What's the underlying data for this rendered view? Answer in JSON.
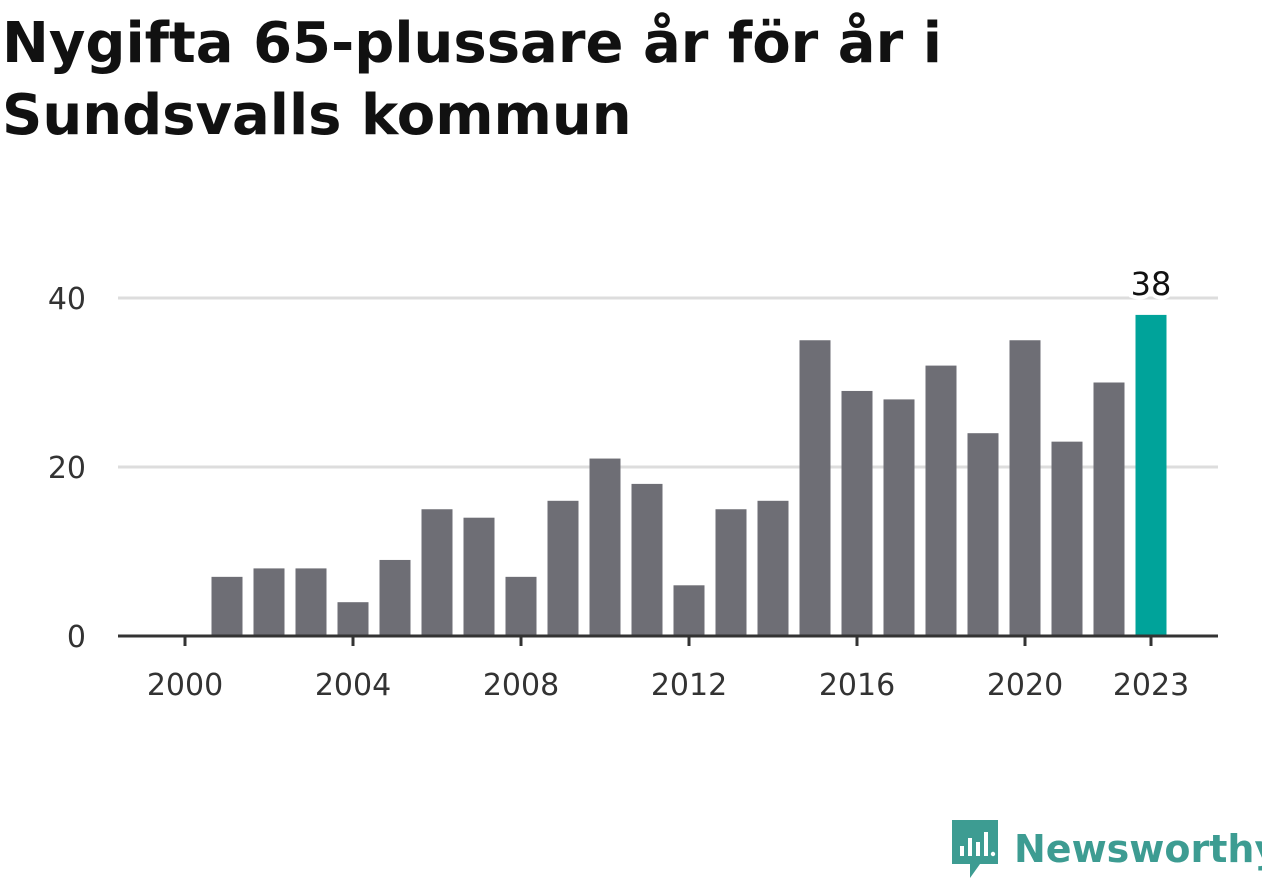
{
  "title": "Nygifta 65-plussare år för år i Sundsvalls kommun",
  "brand": {
    "name": "Newsworthy",
    "icon": "newsworthy-logo-icon",
    "color": "#3d9c92"
  },
  "chart_data": {
    "type": "bar",
    "title": "Nygifta 65-plussare år för år i Sundsvalls kommun",
    "categories": [
      "2000",
      "2001",
      "2002",
      "2003",
      "2004",
      "2005",
      "2006",
      "2007",
      "2008",
      "2009",
      "2010",
      "2011",
      "2012",
      "2013",
      "2014",
      "2015",
      "2016",
      "2017",
      "2018",
      "2019",
      "2020",
      "2021",
      "2022",
      "2023"
    ],
    "values": [
      0,
      7,
      8,
      8,
      4,
      9,
      15,
      14,
      7,
      16,
      21,
      18,
      6,
      15,
      16,
      35,
      29,
      28,
      32,
      24,
      35,
      23,
      30,
      38
    ],
    "x_tick_labels": [
      "2000",
      "2004",
      "2008",
      "2012",
      "2016",
      "2020",
      "2023"
    ],
    "y_ticks": [
      0,
      20,
      40
    ],
    "ylim": [
      0,
      40
    ],
    "grid": true,
    "xlabel": "",
    "ylabel": "",
    "highlight": {
      "category": "2023",
      "label": "38"
    },
    "colors": {
      "bar": "#6e6e75",
      "highlight": "#00a39a",
      "grid": "#dddddd",
      "axis": "#333333"
    }
  }
}
